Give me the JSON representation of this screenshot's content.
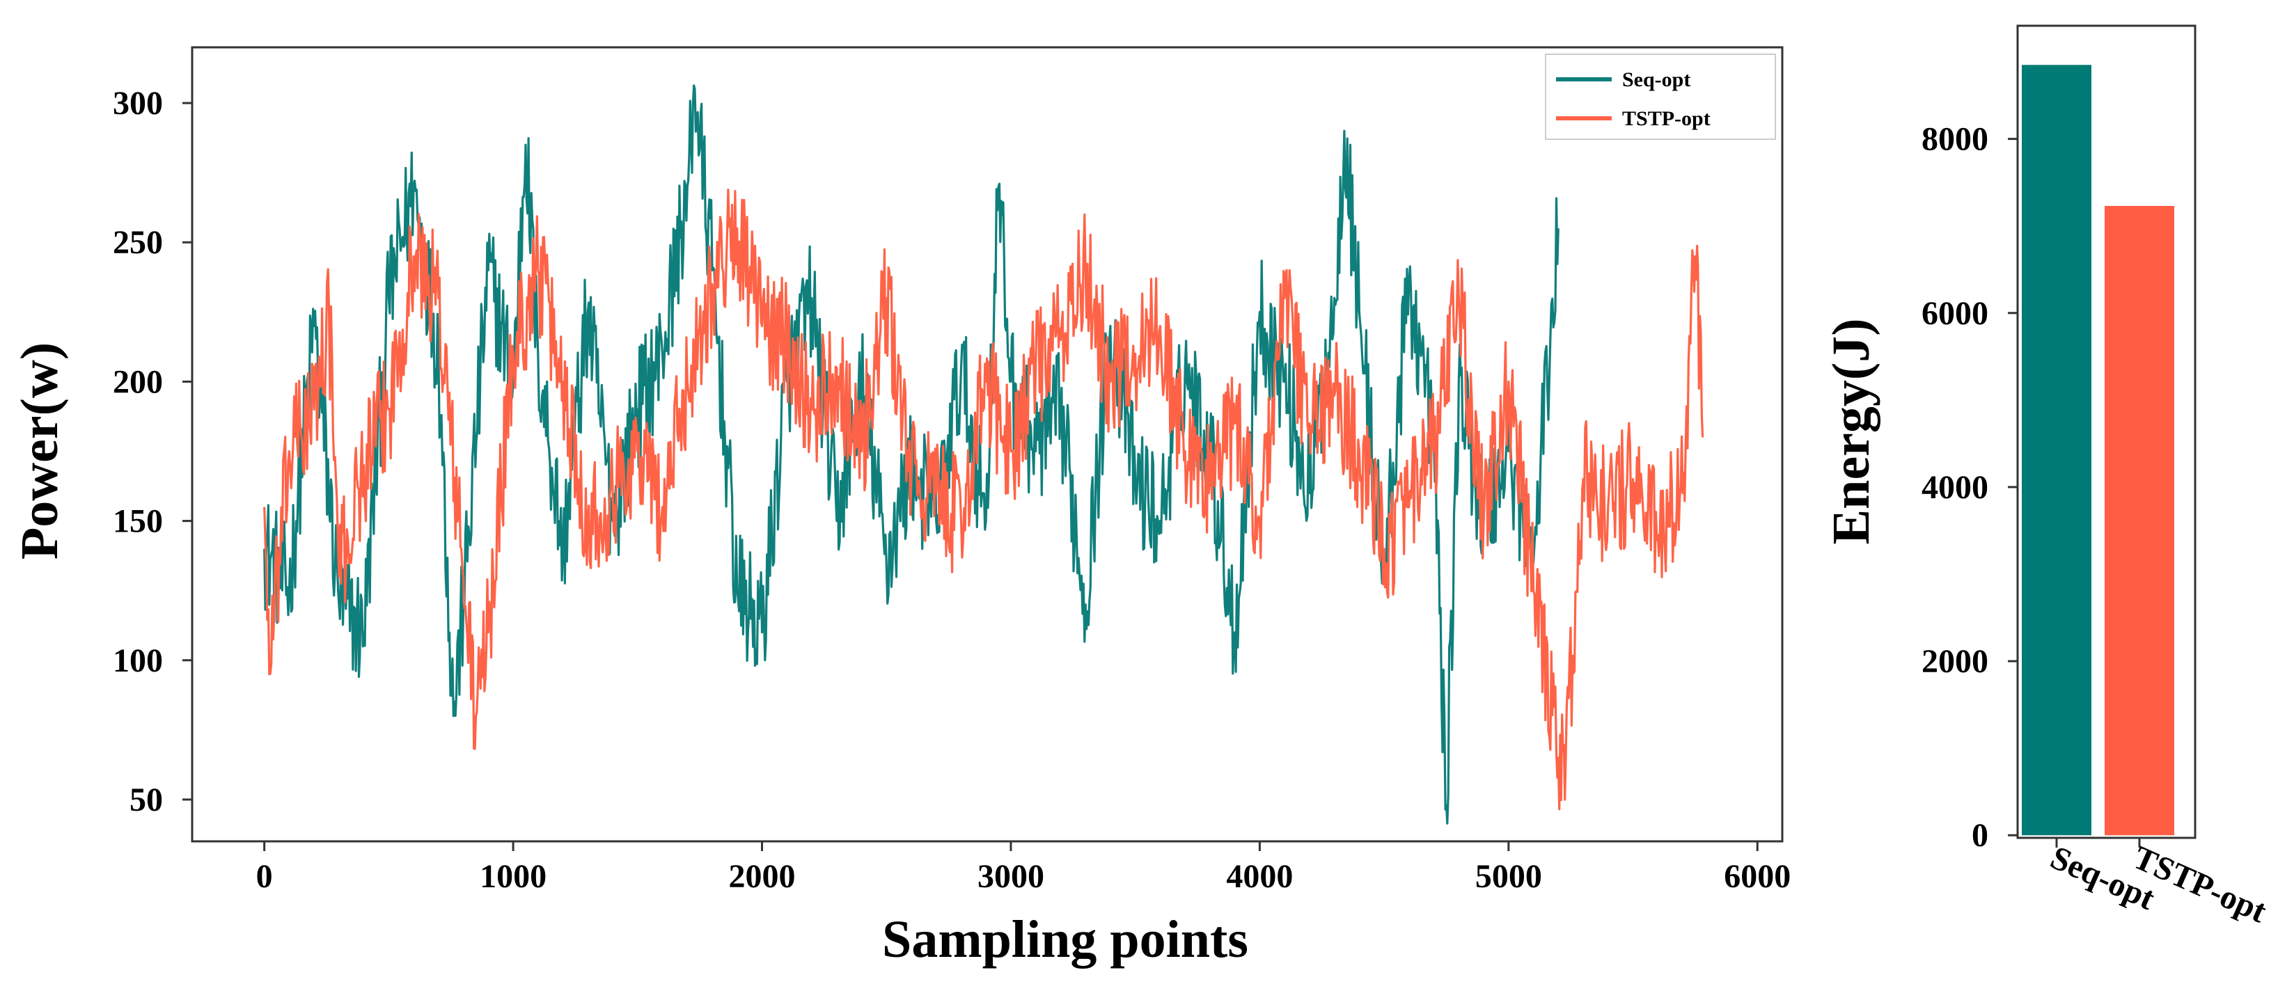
{
  "chart_data": [
    {
      "type": "line",
      "xlabel": "Sampling points",
      "ylabel": "Power(w)",
      "xlim": [
        -290,
        6100
      ],
      "ylim": [
        35,
        320
      ],
      "xticks": [
        0,
        1000,
        2000,
        3000,
        4000,
        5000,
        6000
      ],
      "yticks": [
        50,
        100,
        150,
        200,
        250,
        300
      ],
      "grid": false,
      "legend": "top-right",
      "series": [
        {
          "name": "Seq-opt",
          "color": "#0f7f7c",
          "x": [
            0,
            100,
            200,
            300,
            400,
            500,
            600,
            700,
            760,
            800,
            900,
            1000,
            1050,
            1100,
            1200,
            1300,
            1400,
            1500,
            1600,
            1700,
            1730,
            1800,
            1900,
            2000,
            2100,
            2200,
            2300,
            2400,
            2500,
            2600,
            2700,
            2800,
            2900,
            2950,
            3000,
            3100,
            3200,
            3300,
            3400,
            3500,
            3600,
            3700,
            3800,
            3900,
            4000,
            4100,
            4200,
            4300,
            4340,
            4400,
            4500,
            4600,
            4700,
            4750,
            4800,
            4900,
            5000,
            5100,
            5200
          ],
          "values": [
            140,
            125,
            220,
            120,
            110,
            230,
            270,
            210,
            80,
            120,
            240,
            200,
            285,
            210,
            140,
            225,
            150,
            190,
            210,
            270,
            305,
            240,
            125,
            110,
            200,
            230,
            150,
            200,
            135,
            170,
            150,
            205,
            150,
            270,
            200,
            175,
            190,
            120,
            220,
            165,
            150,
            205,
            175,
            110,
            225,
            200,
            160,
            230,
            290,
            225,
            130,
            235,
            180,
            48,
            200,
            150,
            175,
            135,
            255
          ]
        },
        {
          "name": "TSTP-opt",
          "color": "#ff6347",
          "x": [
            0,
            20,
            100,
            200,
            260,
            300,
            400,
            500,
            600,
            700,
            800,
            850,
            900,
            1000,
            1100,
            1200,
            1300,
            1400,
            1500,
            1600,
            1700,
            1800,
            1900,
            2000,
            2100,
            2200,
            2300,
            2400,
            2500,
            2600,
            2700,
            2800,
            2900,
            3000,
            3100,
            3200,
            3300,
            3400,
            3500,
            3600,
            3700,
            3800,
            3900,
            4000,
            4100,
            4200,
            4300,
            4400,
            4500,
            4600,
            4700,
            4800,
            4900,
            5000,
            5100,
            5200,
            5230,
            5300,
            5400,
            5500,
            5600,
            5700,
            5750,
            5780
          ],
          "values": [
            155,
            95,
            175,
            190,
            225,
            130,
            170,
            190,
            245,
            230,
            130,
            80,
            110,
            210,
            240,
            200,
            150,
            160,
            175,
            155,
            200,
            235,
            255,
            220,
            215,
            190,
            205,
            175,
            230,
            165,
            160,
            150,
            200,
            175,
            205,
            215,
            240,
            200,
            210,
            220,
            175,
            165,
            185,
            150,
            230,
            185,
            195,
            175,
            140,
            155,
            175,
            230,
            150,
            200,
            125,
            65,
            65,
            165,
            155,
            165,
            145,
            160,
            245,
            180
          ]
        }
      ]
    },
    {
      "type": "bar",
      "categories": [
        "Seq-opt",
        "TSTP-opt"
      ],
      "values": [
        8850,
        7230
      ],
      "colors": [
        "#007a74",
        "#ff5e44"
      ],
      "ylabel": "Energy(J)",
      "xlabel": "",
      "ylim": [
        -30,
        9300
      ],
      "yticks": [
        0,
        2000,
        4000,
        6000,
        8000
      ],
      "grid": false
    }
  ]
}
